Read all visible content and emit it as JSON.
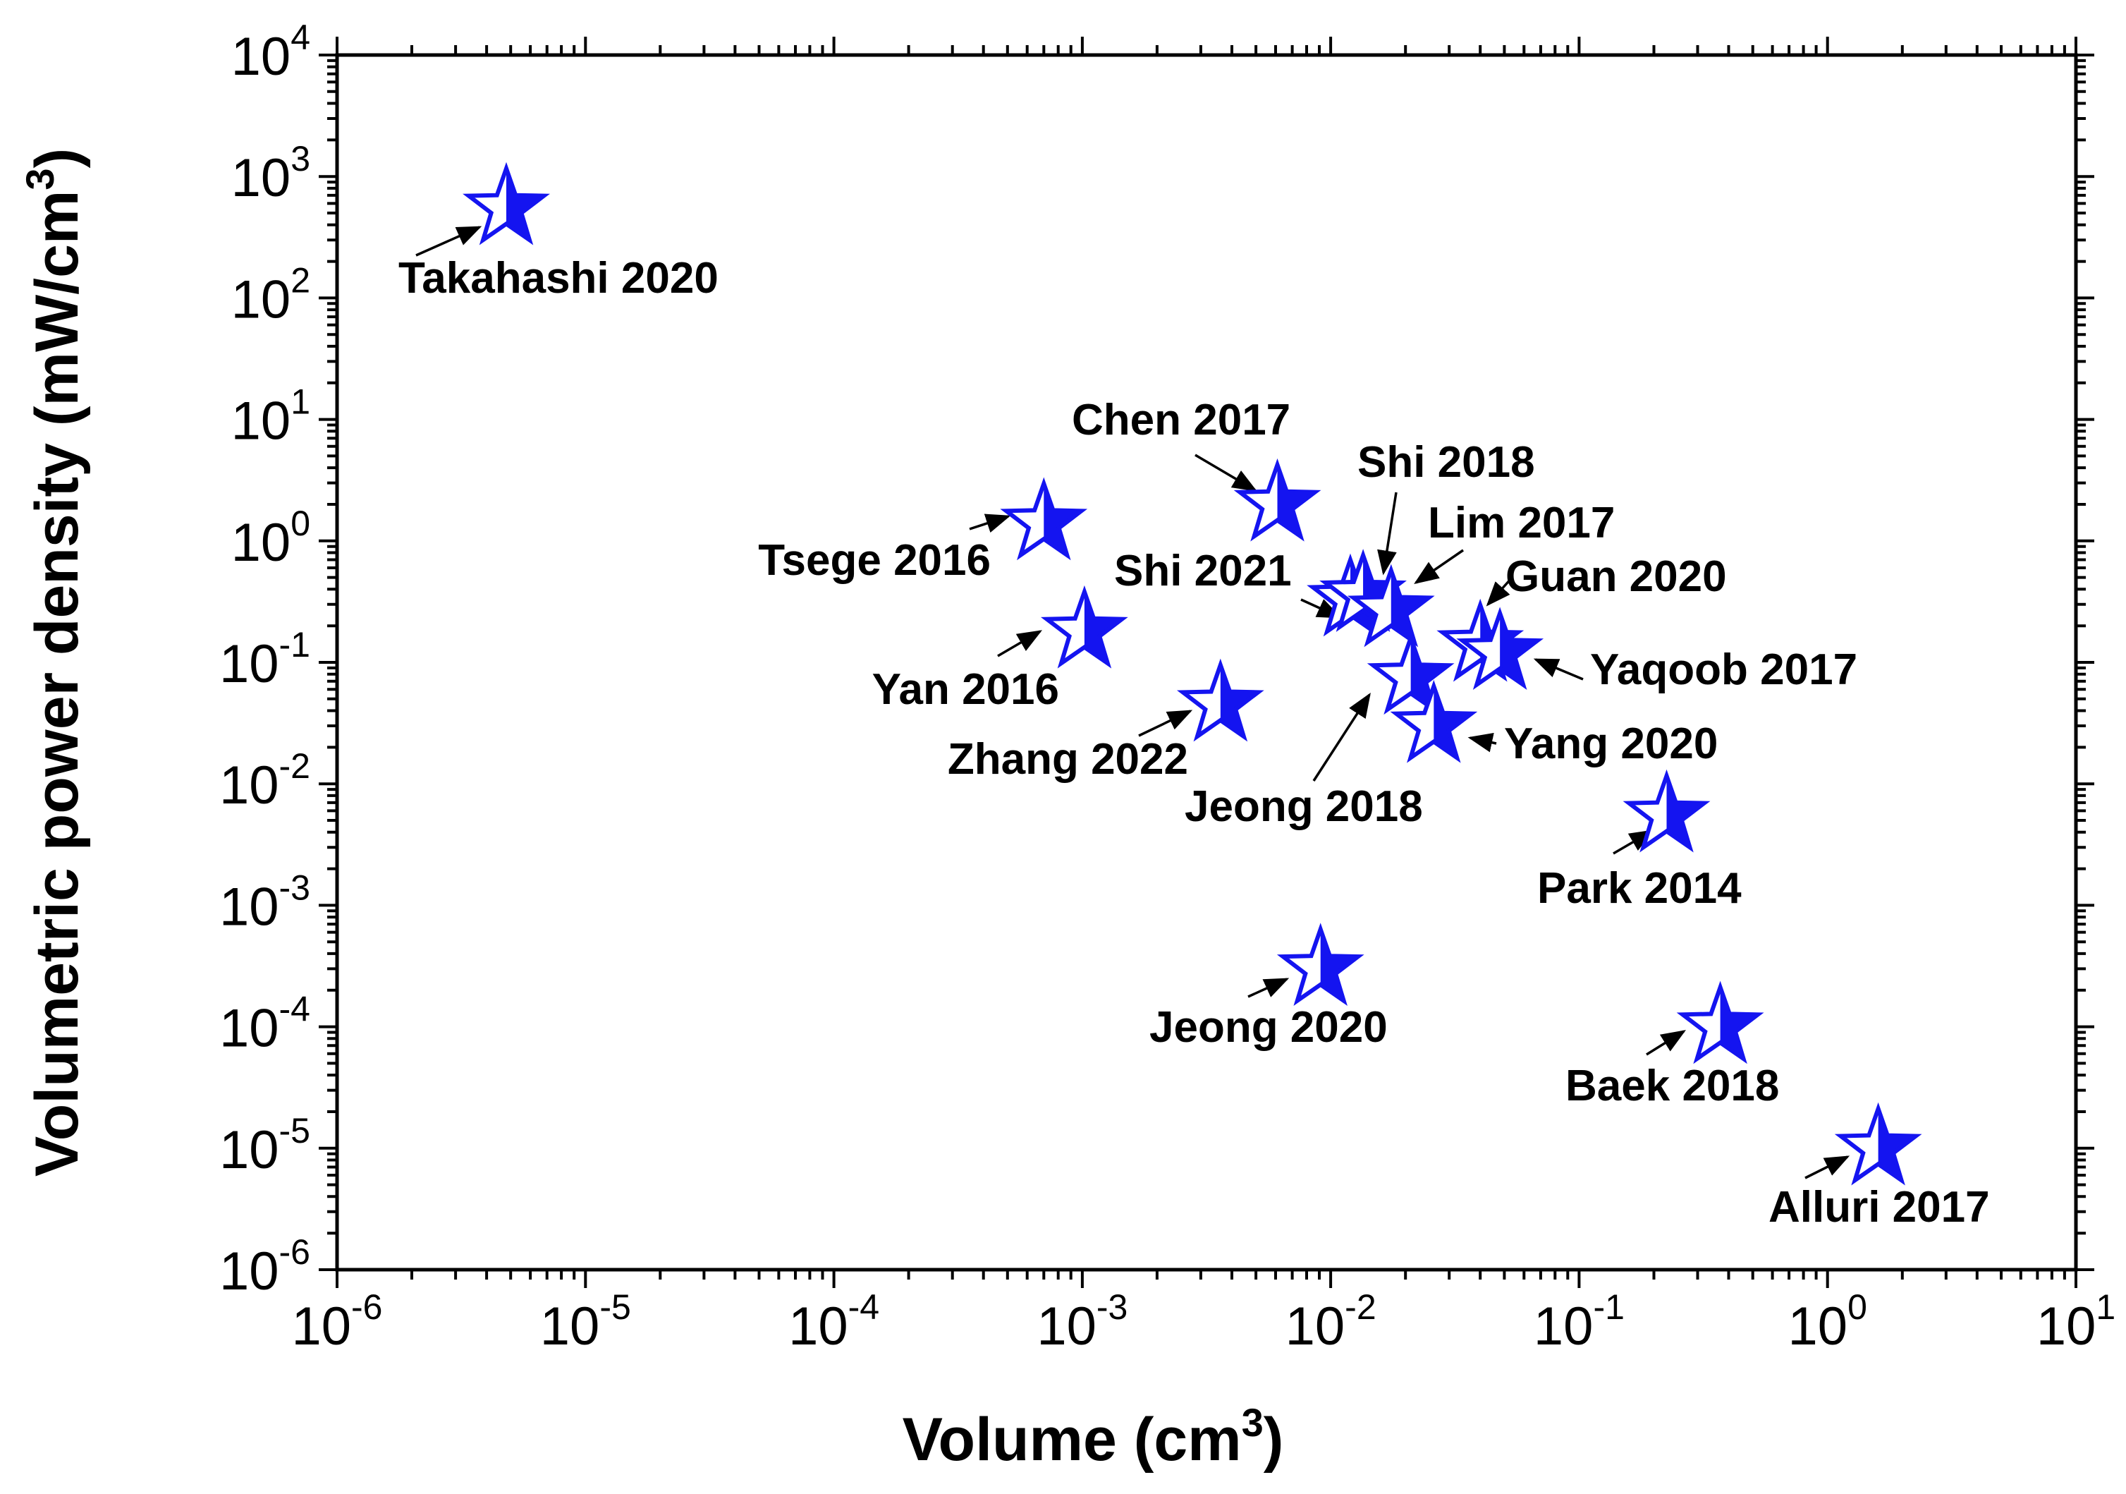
{
  "chart_data": {
    "type": "scatter",
    "title": "",
    "xlabel": "Volume (cm",
    "xlabel_sup": "3",
    "xlabel_tail": ")",
    "ylabel": "Volumetric power density (mW/cm",
    "ylabel_sup": "3",
    "ylabel_tail": ")",
    "x_scale": "log",
    "y_scale": "log",
    "xlim": [
      1e-06,
      10
    ],
    "ylim": [
      1e-06,
      10000
    ],
    "x_ticks": [
      {
        "base": "10",
        "exp": "-6",
        "value": 1e-06
      },
      {
        "base": "10",
        "exp": "-5",
        "value": 1e-05
      },
      {
        "base": "10",
        "exp": "-4",
        "value": 0.0001
      },
      {
        "base": "10",
        "exp": "-3",
        "value": 0.001
      },
      {
        "base": "10",
        "exp": "-2",
        "value": 0.01
      },
      {
        "base": "10",
        "exp": "-1",
        "value": 0.1
      },
      {
        "base": "10",
        "exp": "0",
        "value": 1
      },
      {
        "base": "10",
        "exp": "1",
        "value": 10
      }
    ],
    "y_ticks": [
      {
        "base": "10",
        "exp": "-6",
        "value": 1e-06
      },
      {
        "base": "10",
        "exp": "-5",
        "value": 1e-05
      },
      {
        "base": "10",
        "exp": "-4",
        "value": 0.0001
      },
      {
        "base": "10",
        "exp": "-3",
        "value": 0.001
      },
      {
        "base": "10",
        "exp": "-2",
        "value": 0.01
      },
      {
        "base": "10",
        "exp": "-1",
        "value": 0.1
      },
      {
        "base": "10",
        "exp": "0",
        "value": 1
      },
      {
        "base": "10",
        "exp": "1",
        "value": 10
      },
      {
        "base": "10",
        "exp": "2",
        "value": 100
      },
      {
        "base": "10",
        "exp": "3",
        "value": 1000
      },
      {
        "base": "10",
        "exp": "4",
        "value": 10000
      }
    ],
    "marker": "half-filled star",
    "marker_color": "#1414f0",
    "points": [
      {
        "id": "takahashi-2020",
        "label": "Takahashi 2020",
        "x": 4.8e-06,
        "y": 550
      },
      {
        "id": "tsege-2016",
        "label": "Tsege 2016",
        "x": 0.0007,
        "y": 1.4
      },
      {
        "id": "yan-2016",
        "label": "Yan 2016",
        "x": 0.00102,
        "y": 0.18
      },
      {
        "id": "zhang-2022",
        "label": "Zhang 2022",
        "x": 0.0036,
        "y": 0.045
      },
      {
        "id": "chen-2017",
        "label": "Chen 2017",
        "x": 0.0061,
        "y": 2.0
      },
      {
        "id": "jeong-2020",
        "label": "Jeong 2020",
        "x": 0.0091,
        "y": 0.0003
      },
      {
        "id": "shi-2021",
        "label": "Shi 2021",
        "x": 0.012,
        "y": 0.33
      },
      {
        "id": "shi-2018",
        "label": "Shi 2018",
        "x": 0.0135,
        "y": 0.36
      },
      {
        "id": "lim-2017",
        "label": "Lim 2017",
        "x": 0.0175,
        "y": 0.27
      },
      {
        "id": "jeong-2018",
        "label": "Jeong 2018",
        "x": 0.021,
        "y": 0.075
      },
      {
        "id": "yang-2020",
        "label": "Yang 2020",
        "x": 0.026,
        "y": 0.03
      },
      {
        "id": "guan-2020",
        "label": "Guan 2020",
        "x": 0.04,
        "y": 0.14
      },
      {
        "id": "yaqoob-2017",
        "label": "Yaqoob 2017",
        "x": 0.048,
        "y": 0.12
      },
      {
        "id": "park-2014",
        "label": "Park 2014",
        "x": 0.225,
        "y": 0.0055
      },
      {
        "id": "baek-2018",
        "label": "Baek 2018",
        "x": 0.37,
        "y": 0.0001
      },
      {
        "id": "alluri-2017",
        "label": "Alluri 2017",
        "x": 1.6,
        "y": 1e-05
      }
    ]
  }
}
